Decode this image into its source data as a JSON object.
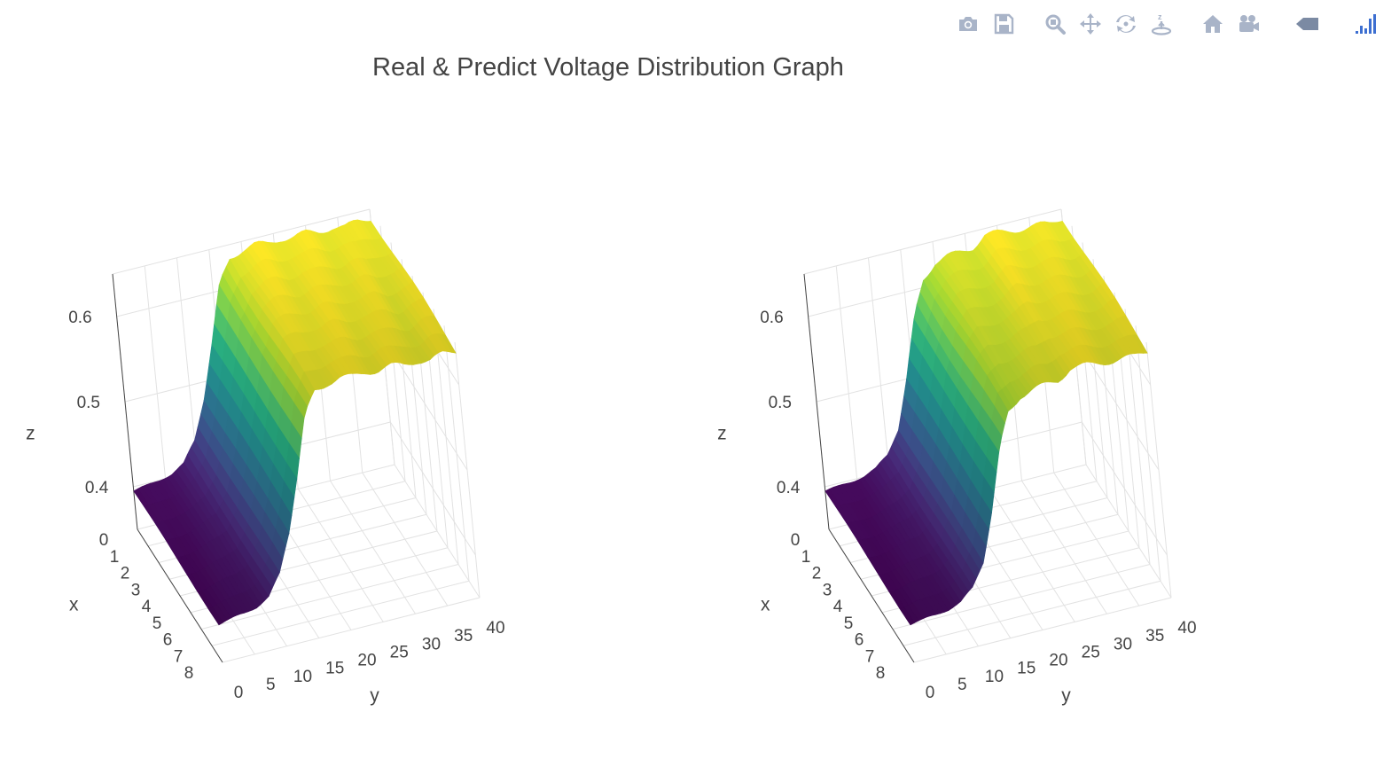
{
  "title": "Real & Predict Voltage Distribution Graph",
  "modebar": [
    {
      "name": "camera-icon",
      "group": 1
    },
    {
      "name": "save-icon",
      "group": 1
    },
    {
      "name": "zoom-icon",
      "group": 2
    },
    {
      "name": "pan-icon",
      "group": 2
    },
    {
      "name": "orbit-rotation-icon",
      "group": 2
    },
    {
      "name": "turntable-rotation-icon",
      "group": 2
    },
    {
      "name": "home-icon",
      "group": 3
    },
    {
      "name": "camera-view-icon",
      "group": 3
    },
    {
      "name": "hover-toggle-icon",
      "group": 4
    },
    {
      "name": "plotly-logo-icon",
      "group": 5
    }
  ],
  "colors": {
    "viridis_low": "#440154",
    "viridis_mid": "#21918c",
    "viridis_high": "#fde725",
    "grid": "#e2e2e2",
    "axis_line": "#444444"
  },
  "chart_data": [
    {
      "type": "surface",
      "colorscale": "Viridis",
      "xlabel": "x",
      "ylabel": "y",
      "zlabel": "z",
      "x_ticks": [
        "0",
        "1",
        "2",
        "3",
        "4",
        "5",
        "6",
        "7",
        "8"
      ],
      "y_ticks": [
        "0",
        "5",
        "10",
        "15",
        "20",
        "25",
        "30",
        "35",
        "40"
      ],
      "z_ticks": [
        "0.4",
        "0.5",
        "0.6"
      ],
      "xlim": [
        0,
        8
      ],
      "ylim": [
        0,
        40
      ],
      "zlim": [
        0.35,
        0.65
      ],
      "profile_y": [
        0,
        2,
        4,
        6,
        8,
        10,
        12,
        14,
        16,
        18,
        20,
        22,
        24,
        26,
        28,
        30,
        32,
        34,
        36,
        38,
        40
      ],
      "profile_z": [
        0.395,
        0.397,
        0.4,
        0.404,
        0.412,
        0.435,
        0.48,
        0.54,
        0.605,
        0.635,
        0.64,
        0.642,
        0.64,
        0.642,
        0.64,
        0.641,
        0.639,
        0.64,
        0.636,
        0.64,
        0.64
      ]
    },
    {
      "type": "surface",
      "colorscale": "Viridis",
      "xlabel": "x",
      "ylabel": "y",
      "zlabel": "z",
      "x_ticks": [
        "0",
        "1",
        "2",
        "3",
        "4",
        "5",
        "6",
        "7",
        "8"
      ],
      "y_ticks": [
        "0",
        "5",
        "10",
        "15",
        "20",
        "25",
        "30",
        "35",
        "40"
      ],
      "z_ticks": [
        "0.4",
        "0.5",
        "0.6"
      ],
      "xlim": [
        0,
        8
      ],
      "ylim": [
        0,
        40
      ],
      "zlim": [
        0.35,
        0.65
      ],
      "profile_y": [
        0,
        2,
        4,
        6,
        8,
        10,
        12,
        14,
        16,
        18,
        20,
        22,
        24,
        26,
        28,
        30,
        32,
        34,
        36,
        38,
        40
      ],
      "profile_z": [
        0.395,
        0.396,
        0.398,
        0.401,
        0.406,
        0.418,
        0.445,
        0.5,
        0.565,
        0.61,
        0.625,
        0.628,
        0.63,
        0.632,
        0.642,
        0.641,
        0.64,
        0.639,
        0.638,
        0.637,
        0.64
      ]
    }
  ]
}
